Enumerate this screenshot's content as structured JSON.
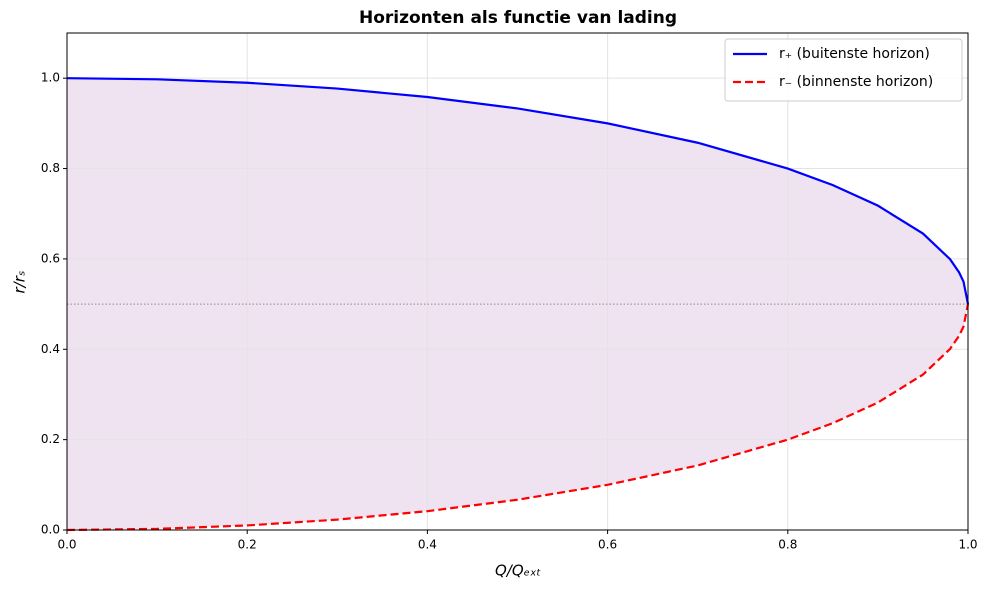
{
  "chart_data": {
    "type": "line",
    "title": "Horizonten als functie van lading",
    "xlabel": "Q/Qₑₓₜ",
    "ylabel": "r/rₛ",
    "x": [
      0,
      0.1,
      0.2,
      0.3,
      0.4,
      0.5,
      0.6,
      0.7,
      0.8,
      0.85,
      0.9,
      0.95,
      0.98,
      0.99,
      0.995,
      1.0
    ],
    "series": [
      {
        "name": "r₊ (buitenste horizon)",
        "color": "#0000ff",
        "dash": "solid",
        "values": [
          1,
          0.9975,
          0.9899,
          0.977,
          0.9583,
          0.933,
          0.9,
          0.8571,
          0.8,
          0.7634,
          0.7179,
          0.6561,
          0.5995,
          0.5705,
          0.5499,
          0.5
        ]
      },
      {
        "name": "r₋ (binnenste horizon)",
        "color": "#ff0000",
        "dash": "dashed",
        "values": [
          0,
          0.0025,
          0.0101,
          0.023,
          0.0417,
          0.067,
          0.1,
          0.1429,
          0.2,
          0.2366,
          0.2821,
          0.3439,
          0.4005,
          0.4295,
          0.4501,
          0.5
        ]
      }
    ],
    "fill_between_color": "#efe3f1",
    "hline": 0.5,
    "hline_color": "#a08090",
    "xlim": [
      0,
      1
    ],
    "ylim": [
      0,
      1.1
    ],
    "xticks": [
      {
        "value": 0,
        "label": "0.0"
      },
      0.2,
      0.4,
      0.6,
      0.8,
      {
        "value": 1,
        "label": "1.0"
      }
    ],
    "yticks": [
      {
        "value": 0,
        "label": "0.0"
      },
      0.2,
      0.4,
      0.6,
      0.8,
      {
        "value": 1,
        "label": "1.0"
      }
    ],
    "grid": true,
    "legend": "upper-right"
  }
}
